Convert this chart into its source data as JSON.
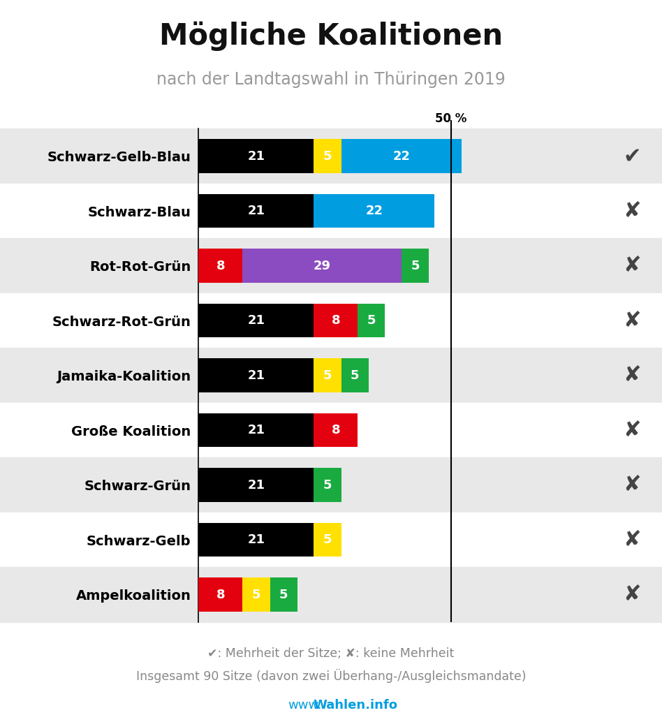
{
  "title": "Mögliche Koalitionen",
  "subtitle": "nach der Landtagswahl in Thüringen 2019",
  "footnote1": "✔: Mehrheit der Sitze; ✘: keine Mehrheit",
  "footnote2": "Insgesamt 90 Sitze (davon zwei Überhang-/Ausgleichsmandate)",
  "watermark_plain": "www.",
  "watermark_bold": "Wahlen.info",
  "majority_line": 46,
  "majority_label": "50 %",
  "coalitions": [
    {
      "name": "Schwarz-Gelb-Blau",
      "segments": [
        {
          "value": 21,
          "color": "#000000",
          "label": "21"
        },
        {
          "value": 5,
          "color": "#FFE000",
          "label": "5"
        },
        {
          "value": 22,
          "color": "#009EE0",
          "label": "22"
        }
      ],
      "majority": true
    },
    {
      "name": "Schwarz-Blau",
      "segments": [
        {
          "value": 21,
          "color": "#000000",
          "label": "21"
        },
        {
          "value": 22,
          "color": "#009EE0",
          "label": "22"
        }
      ],
      "majority": false
    },
    {
      "name": "Rot-Rot-Grün",
      "segments": [
        {
          "value": 8,
          "color": "#E3000F",
          "label": "8"
        },
        {
          "value": 29,
          "color": "#8B4CC1",
          "label": "29"
        },
        {
          "value": 5,
          "color": "#1AAB40",
          "label": "5"
        }
      ],
      "majority": false
    },
    {
      "name": "Schwarz-Rot-Grün",
      "segments": [
        {
          "value": 21,
          "color": "#000000",
          "label": "21"
        },
        {
          "value": 8,
          "color": "#E3000F",
          "label": "8"
        },
        {
          "value": 5,
          "color": "#1AAB40",
          "label": "5"
        }
      ],
      "majority": false
    },
    {
      "name": "Jamaika-Koalition",
      "segments": [
        {
          "value": 21,
          "color": "#000000",
          "label": "21"
        },
        {
          "value": 5,
          "color": "#FFE000",
          "label": "5"
        },
        {
          "value": 5,
          "color": "#1AAB40",
          "label": "5"
        }
      ],
      "majority": false
    },
    {
      "name": "Große Koalition",
      "segments": [
        {
          "value": 21,
          "color": "#000000",
          "label": "21"
        },
        {
          "value": 8,
          "color": "#E3000F",
          "label": "8"
        }
      ],
      "majority": false
    },
    {
      "name": "Schwarz-Grün",
      "segments": [
        {
          "value": 21,
          "color": "#000000",
          "label": "21"
        },
        {
          "value": 5,
          "color": "#1AAB40",
          "label": "5"
        }
      ],
      "majority": false
    },
    {
      "name": "Schwarz-Gelb",
      "segments": [
        {
          "value": 21,
          "color": "#000000",
          "label": "21"
        },
        {
          "value": 5,
          "color": "#FFE000",
          "label": "5"
        }
      ],
      "majority": false
    },
    {
      "name": "Ampelkoalition",
      "segments": [
        {
          "value": 8,
          "color": "#E3000F",
          "label": "8"
        },
        {
          "value": 5,
          "color": "#FFE000",
          "label": "5"
        },
        {
          "value": 5,
          "color": "#1AAB40",
          "label": "5"
        }
      ],
      "majority": false
    }
  ],
  "xlim_max": 70,
  "bar_height": 0.62,
  "background_color": "#FFFFFF",
  "alt_row_color": "#E8E8E8",
  "label_color": "#FFFFFF",
  "label_fontsize": 13,
  "title_fontsize": 30,
  "subtitle_fontsize": 17,
  "name_fontsize": 14,
  "mark_fontsize": 22
}
